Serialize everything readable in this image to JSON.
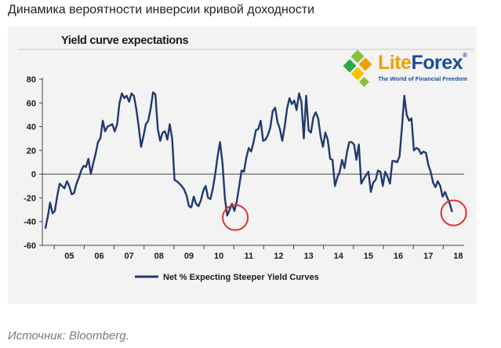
{
  "heading": "Динамика вероятности инверсии кривой доходности",
  "source": "Источник: Bloomberg.",
  "logo": {
    "lite": "Lite",
    "forex": "Forex",
    "reg": "®",
    "tagline": "The World of Financial Freedom"
  },
  "colors": {
    "line": "#1f3a6e",
    "circle": "#e03030",
    "panel": "#f3f3f3",
    "grid": "#c8c8c8"
  },
  "chart_data": {
    "type": "line",
    "title": "Yield curve expectations",
    "xlabel": "",
    "ylabel": "",
    "ylim": [
      -60,
      80
    ],
    "yticks": [
      -60,
      -40,
      -20,
      0,
      20,
      40,
      60,
      80
    ],
    "xlim": [
      2004.6,
      2018.7
    ],
    "xtick_labels": [
      "05",
      "06",
      "07",
      "08",
      "09",
      "10",
      "11",
      "12",
      "13",
      "14",
      "15",
      "16",
      "17",
      "18"
    ],
    "grid": false,
    "legend_position": "bottom-center",
    "series": [
      {
        "name": "Net % Expecting Steeper Yield Curves",
        "x": [
          2004.7,
          2004.78,
          2004.86,
          2004.94,
          2005.02,
          2005.1,
          2005.18,
          2005.26,
          2005.34,
          2005.42,
          2005.5,
          2005.58,
          2005.66,
          2005.74,
          2005.82,
          2005.9,
          2005.98,
          2006.06,
          2006.14,
          2006.22,
          2006.3,
          2006.38,
          2006.46,
          2006.54,
          2006.62,
          2006.7,
          2006.78,
          2006.86,
          2006.94,
          2007.02,
          2007.1,
          2007.18,
          2007.26,
          2007.34,
          2007.42,
          2007.5,
          2007.58,
          2007.66,
          2007.74,
          2007.82,
          2007.9,
          2007.98,
          2008.06,
          2008.14,
          2008.22,
          2008.3,
          2008.38,
          2008.46,
          2008.54,
          2008.62,
          2008.7,
          2008.78,
          2008.86,
          2008.94,
          2009.02,
          2009.1,
          2009.18,
          2009.26,
          2009.34,
          2009.42,
          2009.5,
          2009.58,
          2009.66,
          2009.74,
          2009.82,
          2009.9,
          2009.98,
          2010.06,
          2010.14,
          2010.22,
          2010.3,
          2010.38,
          2010.46,
          2010.54,
          2010.62,
          2010.7,
          2010.78,
          2010.86,
          2010.94,
          2011.02,
          2011.1,
          2011.18,
          2011.26,
          2011.34,
          2011.42,
          2011.5,
          2011.58,
          2011.66,
          2011.74,
          2011.82,
          2011.9,
          2011.98,
          2012.06,
          2012.14,
          2012.22,
          2012.3,
          2012.38,
          2012.46,
          2012.54,
          2012.62,
          2012.7,
          2012.78,
          2012.86,
          2012.94,
          2013.02,
          2013.1,
          2013.18,
          2013.26,
          2013.34,
          2013.42,
          2013.5,
          2013.58,
          2013.66,
          2013.74,
          2013.82,
          2013.9,
          2013.98,
          2014.06,
          2014.14,
          2014.22,
          2014.3,
          2014.38,
          2014.46,
          2014.54,
          2014.62,
          2014.7,
          2014.78,
          2014.86,
          2014.94,
          2015.02,
          2015.1,
          2015.18,
          2015.26,
          2015.34,
          2015.42,
          2015.5,
          2015.58,
          2015.66,
          2015.74,
          2015.82,
          2015.9,
          2015.98,
          2016.06,
          2016.14,
          2016.22,
          2016.3,
          2016.38,
          2016.46,
          2016.54,
          2016.62,
          2016.7,
          2016.78,
          2016.86,
          2016.94,
          2017.02,
          2017.1,
          2017.18,
          2017.26,
          2017.34,
          2017.42,
          2017.5,
          2017.58,
          2017.66,
          2017.74,
          2017.82,
          2017.9,
          2017.98,
          2018.06,
          2018.14,
          2018.22,
          2018.3
        ],
        "y": [
          -46,
          -36,
          -24,
          -33,
          -31,
          -18,
          -8,
          -10,
          -12,
          -6,
          -10,
          -17,
          -16,
          -8,
          -3,
          3,
          7,
          6,
          13,
          0,
          9,
          17,
          27,
          30,
          45,
          36,
          40,
          41,
          42,
          36,
          42,
          60,
          68,
          64,
          66,
          61,
          68,
          66,
          55,
          40,
          23,
          32,
          42,
          45,
          55,
          69,
          67,
          38,
          28,
          35,
          36,
          29,
          42,
          30,
          -5,
          -6,
          -8,
          -10,
          -13,
          -18,
          -27,
          -28,
          -19,
          -25,
          -27,
          -22,
          -14,
          -10,
          -20,
          -21,
          -12,
          0,
          15,
          27,
          10,
          -20,
          -35,
          -30,
          -25,
          -31,
          -23,
          -10,
          3,
          2,
          14,
          22,
          19,
          27,
          37,
          38,
          45,
          28,
          29,
          33,
          39,
          53,
          56,
          44,
          38,
          28,
          40,
          55,
          64,
          59,
          62,
          54,
          68,
          61,
          30,
          66,
          37,
          35,
          48,
          52,
          47,
          32,
          23,
          35,
          29,
          13,
          12,
          -10,
          -3,
          2,
          12,
          5,
          18,
          27,
          27,
          25,
          12,
          25,
          -8,
          -4,
          -1,
          2,
          -15,
          -7,
          -5,
          3,
          2,
          -10,
          2,
          -2,
          -8,
          11,
          11,
          10,
          15,
          39,
          66,
          50,
          45,
          47,
          20,
          22,
          21,
          17,
          19,
          18,
          8,
          2,
          -7,
          -11,
          -6,
          -10,
          -19,
          -15,
          -20,
          -25,
          -32
        ],
        "color": "#1f3a6e"
      }
    ],
    "highlights": [
      {
        "x": 2011.05,
        "y": -36
      },
      {
        "x": 2018.35,
        "y": -32
      }
    ]
  }
}
